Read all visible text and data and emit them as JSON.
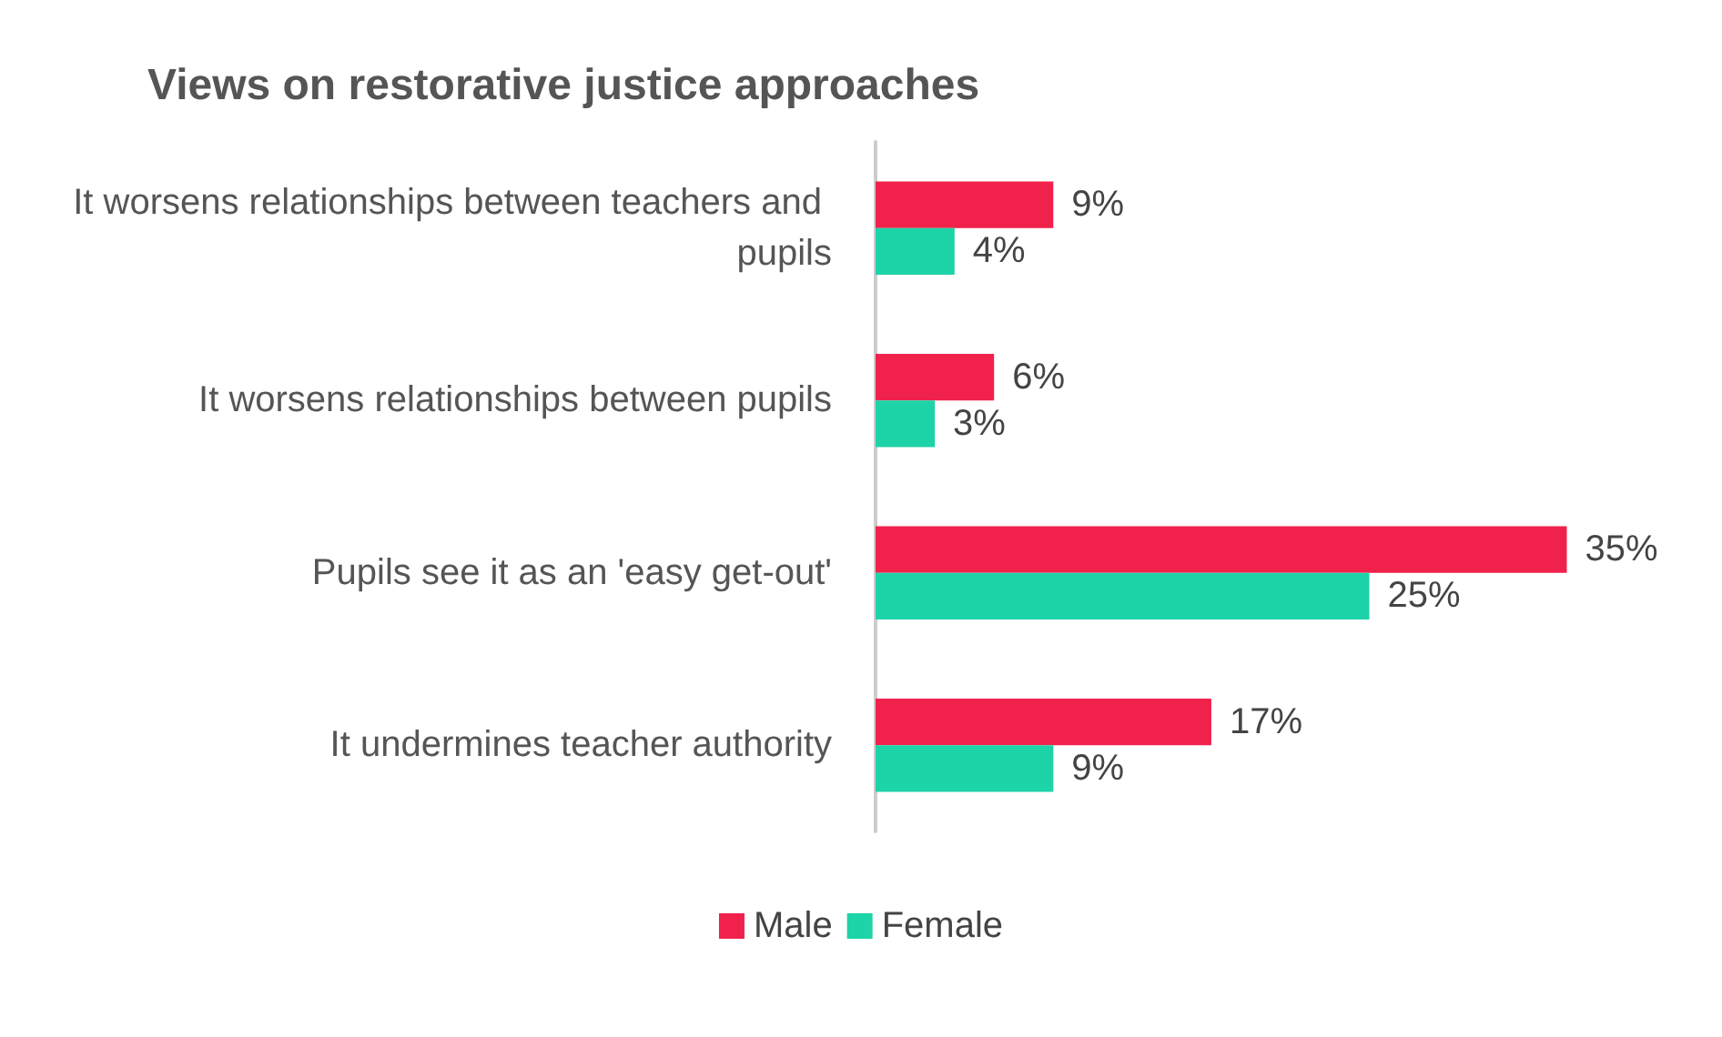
{
  "chart_data": {
    "type": "bar",
    "orientation": "horizontal",
    "title": "Views on restorative justice approaches",
    "categories": [
      "It worsens relationships between teachers and pupils",
      "It worsens relationships between pupils",
      "Pupils see it as an 'easy get-out'",
      "It undermines teacher authority"
    ],
    "series": [
      {
        "name": "Male",
        "color": "#f0214b",
        "values": [
          9,
          6,
          35,
          17
        ],
        "value_labels": [
          "9%",
          "6%",
          "35%",
          "17%"
        ]
      },
      {
        "name": "Female",
        "color": "#1dd3a8",
        "values": [
          4,
          3,
          25,
          9
        ],
        "value_labels": [
          "4%",
          "3%",
          "25%",
          "9%"
        ]
      }
    ],
    "legend": "bottom"
  }
}
